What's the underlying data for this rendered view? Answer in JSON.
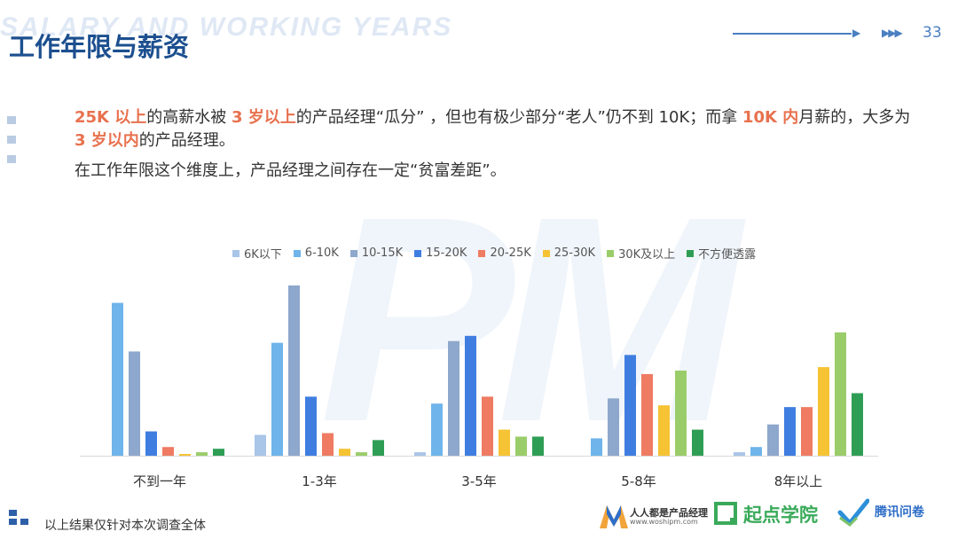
{
  "header": {
    "watermark_text": "SALARY AND WORKING YEARS",
    "title": "工作年限与薪资",
    "page_number": "33"
  },
  "body_text": {
    "line1_part1": "25K 以上",
    "line1_part2": "的高薪水被 ",
    "line1_part3": "3 岁以上",
    "line1_part4": "的产品经理“瓜分” ，但也有极少部分“老人”仍不到 10K；而拿 ",
    "line1_part5": "10K 内",
    "line1_part6": "月薪的，大多为 ",
    "line1_part7": "3 岁以内",
    "line1_part8": "的产品经理。",
    "line2": "在工作年限这个维度上，产品经理之间存在一定“贫富差距”。"
  },
  "chart_data": {
    "type": "bar",
    "categories": [
      "不到一年",
      "1-3年",
      "3-5年",
      "5-8年",
      "8年以上"
    ],
    "series": [
      {
        "name": "6K以下",
        "color": "#a9c5e8",
        "values": [
          0,
          12,
          2,
          0,
          2
        ]
      },
      {
        "name": "6-10K",
        "color": "#6fb4ea",
        "values": [
          88,
          65,
          30,
          10,
          5
        ]
      },
      {
        "name": "10-15K",
        "color": "#8ea7cc",
        "values": [
          60,
          98,
          66,
          33,
          18
        ]
      },
      {
        "name": "15-20K",
        "color": "#3f7ee0",
        "values": [
          14,
          34,
          69,
          58,
          28
        ]
      },
      {
        "name": "20-25K",
        "color": "#ee7b62",
        "values": [
          5,
          13,
          34,
          47,
          28
        ]
      },
      {
        "name": "25-30K",
        "color": "#f5c333",
        "values": [
          1,
          4,
          15,
          29,
          51
        ]
      },
      {
        "name": "30K及以上",
        "color": "#9acd6a",
        "values": [
          2,
          2,
          11,
          49,
          71
        ]
      },
      {
        "name": "不方便透露",
        "color": "#2f9e55",
        "values": [
          4,
          9,
          11,
          15,
          36
        ]
      }
    ],
    "ylim": [
      0,
      100
    ],
    "grid": false,
    "legend_position": "top"
  },
  "footer": {
    "note": "以上结果仅针对本次调查全体",
    "logos": {
      "woshipm_name": "人人都是产品经理",
      "woshipm_url": "www.woshipm.com",
      "qidian": "起点学院",
      "tencent": "腾讯问卷"
    }
  },
  "colors": {
    "title": "#1c4f8f",
    "highlight": "#e8714e",
    "accent": "#4a7fc1"
  }
}
